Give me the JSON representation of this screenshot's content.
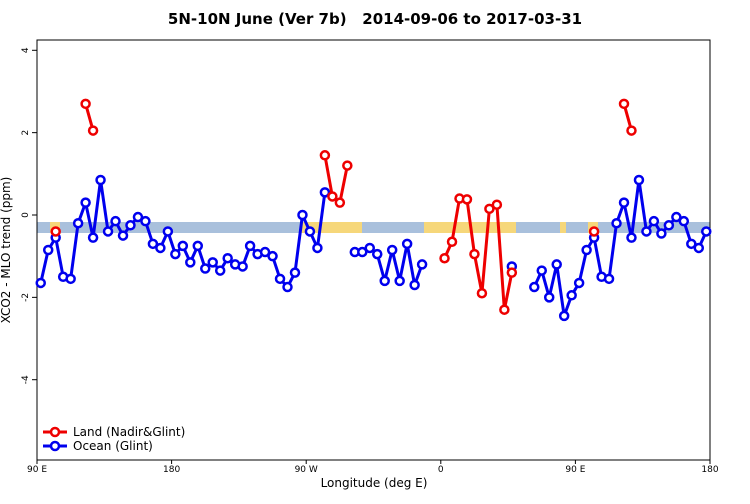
{
  "chart_data": {
    "type": "line",
    "title": "5N-10N June (Ver 7b)   2014-09-06 to 2017-03-31",
    "x_label": "Longitude (deg E)",
    "y_label": "XCO2 - MLO trend (ppm)",
    "x": [
      92.5,
      97.5,
      102.5,
      107.5,
      112.5,
      117.5,
      122.5,
      127.5,
      132.5,
      137.5,
      142.5,
      147.5,
      152.5,
      157.5,
      162.5,
      167.5,
      172.5,
      177.5,
      182.5,
      187.5,
      192.5,
      197.5,
      202.5,
      207.5,
      212.5,
      217.5,
      222.5,
      227.5,
      232.5,
      237.5,
      242.5,
      247.5,
      252.5,
      257.5,
      262.5,
      267.5,
      272.5,
      277.5,
      282.5,
      287.5,
      292.5,
      297.5,
      302.5,
      307.5,
      312.5,
      317.5,
      322.5,
      327.5,
      332.5,
      337.5,
      342.5,
      347.5,
      352.5,
      357.5,
      362.5,
      367.5,
      372.5,
      377.5,
      382.5,
      387.5,
      392.5,
      397.5,
      402.5,
      407.5,
      412.5,
      417.5,
      422.5,
      427.5,
      432.5,
      437.5,
      442.5,
      447.5,
      452.5,
      457.5,
      462.5,
      467.5,
      472.5,
      477.5,
      482.5,
      487.5,
      492.5,
      497.5,
      502.5,
      507.5,
      512.5,
      517.5,
      522.5,
      527.5,
      532.5,
      537.5
    ],
    "xlim": [
      90,
      540
    ],
    "xticks": [
      {
        "value": 90,
        "label": "90 E"
      },
      {
        "value": 180,
        "label": "180"
      },
      {
        "value": 270,
        "label": "90 W"
      },
      {
        "value": 360,
        "label": "0"
      },
      {
        "value": 450,
        "label": "90 E"
      },
      {
        "value": 540,
        "label": "180"
      }
    ],
    "ylim": [
      -5.95,
      4.25
    ],
    "yticks": [
      -4,
      -2,
      0,
      2,
      4
    ],
    "legend": "bottom-left",
    "series": [
      {
        "name": "Ocean (Glint)",
        "color": "#0000ee",
        "values": [
          -1.65,
          -0.85,
          -0.55,
          -1.5,
          -1.55,
          -0.2,
          0.3,
          -0.55,
          0.85,
          -0.4,
          -0.15,
          -0.5,
          -0.25,
          -0.05,
          -0.15,
          -0.7,
          -0.8,
          -0.4,
          -0.95,
          -0.75,
          -1.15,
          -0.75,
          -1.3,
          -1.15,
          -1.35,
          -1.05,
          -1.2,
          -1.25,
          -0.75,
          -0.95,
          -0.9,
          -1.0,
          -1.55,
          -1.75,
          -1.4,
          0.0,
          -0.4,
          -0.8,
          0.55,
          null,
          null,
          null,
          -0.9,
          -0.9,
          -0.8,
          -0.95,
          -1.6,
          -0.85,
          -1.6,
          -0.7,
          -1.7,
          -1.2,
          null,
          null,
          null,
          null,
          null,
          null,
          null,
          null,
          null,
          null,
          null,
          -1.25,
          null,
          null,
          -1.75,
          -1.35,
          -2.0,
          -1.2,
          -2.45,
          -1.95,
          -1.65,
          -0.85,
          -0.55,
          -1.5,
          -1.55,
          -0.2,
          0.3,
          -0.55,
          0.85,
          -0.4,
          -0.15,
          -0.45,
          -0.25,
          -0.05,
          -0.15,
          -0.7,
          -0.8,
          -0.4
        ]
      },
      {
        "name": "Land (Nadir&Glint)",
        "color": "#ee0000",
        "values": [
          null,
          null,
          -0.4,
          null,
          null,
          null,
          2.7,
          2.05,
          null,
          null,
          null,
          null,
          null,
          null,
          null,
          null,
          null,
          null,
          null,
          null,
          null,
          null,
          null,
          null,
          null,
          null,
          null,
          null,
          null,
          null,
          null,
          null,
          null,
          null,
          null,
          null,
          null,
          null,
          1.45,
          0.45,
          0.3,
          1.2,
          null,
          null,
          null,
          null,
          null,
          null,
          null,
          null,
          null,
          null,
          null,
          null,
          -1.05,
          -0.65,
          0.4,
          0.38,
          -0.95,
          -1.9,
          0.15,
          0.25,
          -2.3,
          -1.4,
          null,
          null,
          null,
          null,
          null,
          null,
          null,
          null,
          null,
          null,
          -0.4,
          null,
          null,
          null,
          2.7,
          2.05,
          null,
          null,
          null,
          null,
          null,
          null,
          null,
          null,
          null,
          null
        ]
      }
    ]
  }
}
